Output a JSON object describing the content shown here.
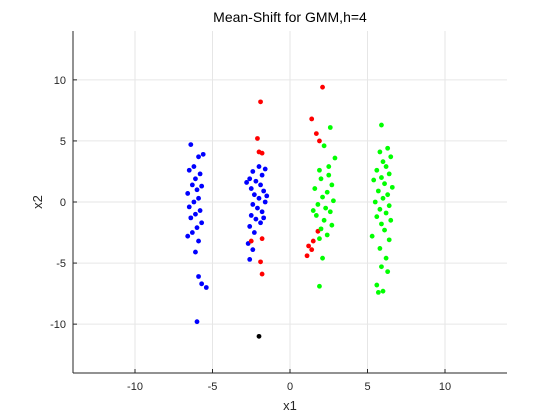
{
  "chart_data": {
    "type": "scatter",
    "title": "Mean-Shift for GMM,h=4",
    "xlabel": "x1",
    "ylabel": "x2",
    "xlim": [
      -14,
      14
    ],
    "ylim": [
      -14,
      14
    ],
    "xticks": [
      -10,
      -5,
      0,
      5,
      10
    ],
    "yticks": [
      -10,
      -5,
      0,
      5,
      10
    ],
    "grid": true,
    "legend": "none",
    "series": [
      {
        "color": "#0000ff",
        "points": [
          [
            -6.4,
            4.7
          ],
          [
            -5.6,
            3.9
          ],
          [
            -5.9,
            3.7
          ],
          [
            -6.2,
            2.9
          ],
          [
            -6.5,
            2.6
          ],
          [
            -5.8,
            2.3
          ],
          [
            -6.1,
            1.9
          ],
          [
            -6.3,
            1.4
          ],
          [
            -5.7,
            1.3
          ],
          [
            -6.0,
            1.0
          ],
          [
            -6.6,
            0.7
          ],
          [
            -5.9,
            0.3
          ],
          [
            -6.2,
            0.0
          ],
          [
            -6.5,
            -0.4
          ],
          [
            -5.8,
            -0.7
          ],
          [
            -6.1,
            -1.0
          ],
          [
            -6.4,
            -1.3
          ],
          [
            -5.7,
            -1.7
          ],
          [
            -6.0,
            -2.1
          ],
          [
            -6.3,
            -2.5
          ],
          [
            -6.6,
            -2.8
          ],
          [
            -5.9,
            -3.2
          ],
          [
            -6.1,
            -4.1
          ],
          [
            -5.9,
            -6.1
          ],
          [
            -5.7,
            -6.7
          ],
          [
            -5.4,
            -7.0
          ],
          [
            -6.0,
            -9.8
          ],
          [
            -2.0,
            2.9
          ],
          [
            -1.6,
            2.7
          ],
          [
            -2.4,
            2.5
          ],
          [
            -1.8,
            2.2
          ],
          [
            -2.6,
            1.9
          ],
          [
            -2.2,
            1.7
          ],
          [
            -1.9,
            1.4
          ],
          [
            -2.5,
            1.1
          ],
          [
            -1.7,
            0.9
          ],
          [
            -2.3,
            0.6
          ],
          [
            -2.0,
            0.3
          ],
          [
            -1.6,
            0.0
          ],
          [
            -2.4,
            -0.2
          ],
          [
            -2.1,
            -0.5
          ],
          [
            -1.8,
            -0.8
          ],
          [
            -2.5,
            -1.1
          ],
          [
            -2.2,
            -1.4
          ],
          [
            -1.9,
            -1.7
          ],
          [
            -2.6,
            -2.0
          ],
          [
            -2.3,
            -2.5
          ],
          [
            -2.7,
            -3.4
          ],
          [
            -2.6,
            -4.7
          ],
          [
            -2.4,
            -3.9
          ],
          [
            -1.7,
            -1.3
          ],
          [
            -2.8,
            1.6
          ],
          [
            -1.5,
            0.5
          ]
        ]
      },
      {
        "color": "#ff0000",
        "points": [
          [
            -1.9,
            8.2
          ],
          [
            -2.1,
            5.2
          ],
          [
            -2.0,
            4.1
          ],
          [
            -1.8,
            4.0
          ],
          [
            -1.8,
            -3.0
          ],
          [
            -2.5,
            -3.2
          ],
          [
            -1.9,
            -4.9
          ],
          [
            -1.8,
            -5.9
          ],
          [
            2.1,
            9.4
          ],
          [
            1.4,
            6.8
          ],
          [
            1.7,
            5.6
          ],
          [
            1.9,
            5.0
          ],
          [
            1.8,
            -2.4
          ],
          [
            1.5,
            -3.2
          ],
          [
            1.2,
            -3.6
          ],
          [
            1.4,
            -3.9
          ],
          [
            1.1,
            -4.4
          ]
        ]
      },
      {
        "color": "#00ff00",
        "points": [
          [
            2.6,
            6.1
          ],
          [
            2.2,
            4.6
          ],
          [
            2.9,
            3.6
          ],
          [
            1.9,
            2.6
          ],
          [
            2.5,
            2.2
          ],
          [
            2.0,
            1.9
          ],
          [
            2.7,
            1.4
          ],
          [
            1.6,
            1.1
          ],
          [
            2.4,
            0.8
          ],
          [
            2.1,
            0.4
          ],
          [
            2.8,
            0.1
          ],
          [
            1.8,
            -0.2
          ],
          [
            2.3,
            -0.5
          ],
          [
            2.6,
            -0.8
          ],
          [
            1.7,
            -1.1
          ],
          [
            2.2,
            -1.5
          ],
          [
            2.7,
            -1.9
          ],
          [
            2.0,
            -2.2
          ],
          [
            2.4,
            -2.7
          ],
          [
            1.9,
            -3.0
          ],
          [
            2.1,
            -4.6
          ],
          [
            1.9,
            -6.9
          ],
          [
            2.5,
            2.9
          ],
          [
            1.5,
            -0.7
          ],
          [
            5.9,
            6.3
          ],
          [
            6.3,
            4.4
          ],
          [
            5.8,
            4.1
          ],
          [
            6.5,
            3.7
          ],
          [
            6.0,
            3.3
          ],
          [
            6.2,
            2.9
          ],
          [
            5.6,
            2.6
          ],
          [
            6.4,
            2.3
          ],
          [
            5.9,
            2.0
          ],
          [
            5.4,
            1.8
          ],
          [
            6.1,
            1.5
          ],
          [
            6.6,
            1.2
          ],
          [
            5.7,
            0.9
          ],
          [
            6.3,
            0.6
          ],
          [
            6.0,
            0.3
          ],
          [
            5.5,
            0.0
          ],
          [
            6.4,
            -0.3
          ],
          [
            5.8,
            -0.6
          ],
          [
            6.2,
            -0.9
          ],
          [
            5.6,
            -1.2
          ],
          [
            6.5,
            -1.5
          ],
          [
            5.9,
            -1.8
          ],
          [
            6.1,
            -2.3
          ],
          [
            5.3,
            -2.8
          ],
          [
            6.4,
            -3.1
          ],
          [
            5.8,
            -3.8
          ],
          [
            6.2,
            -4.6
          ],
          [
            5.9,
            -5.3
          ],
          [
            6.3,
            -5.7
          ],
          [
            5.6,
            -6.8
          ],
          [
            6.0,
            -7.3
          ],
          [
            5.7,
            -7.4
          ]
        ]
      },
      {
        "color": "#000000",
        "points": [
          [
            -2.0,
            -11.0
          ]
        ]
      }
    ]
  }
}
